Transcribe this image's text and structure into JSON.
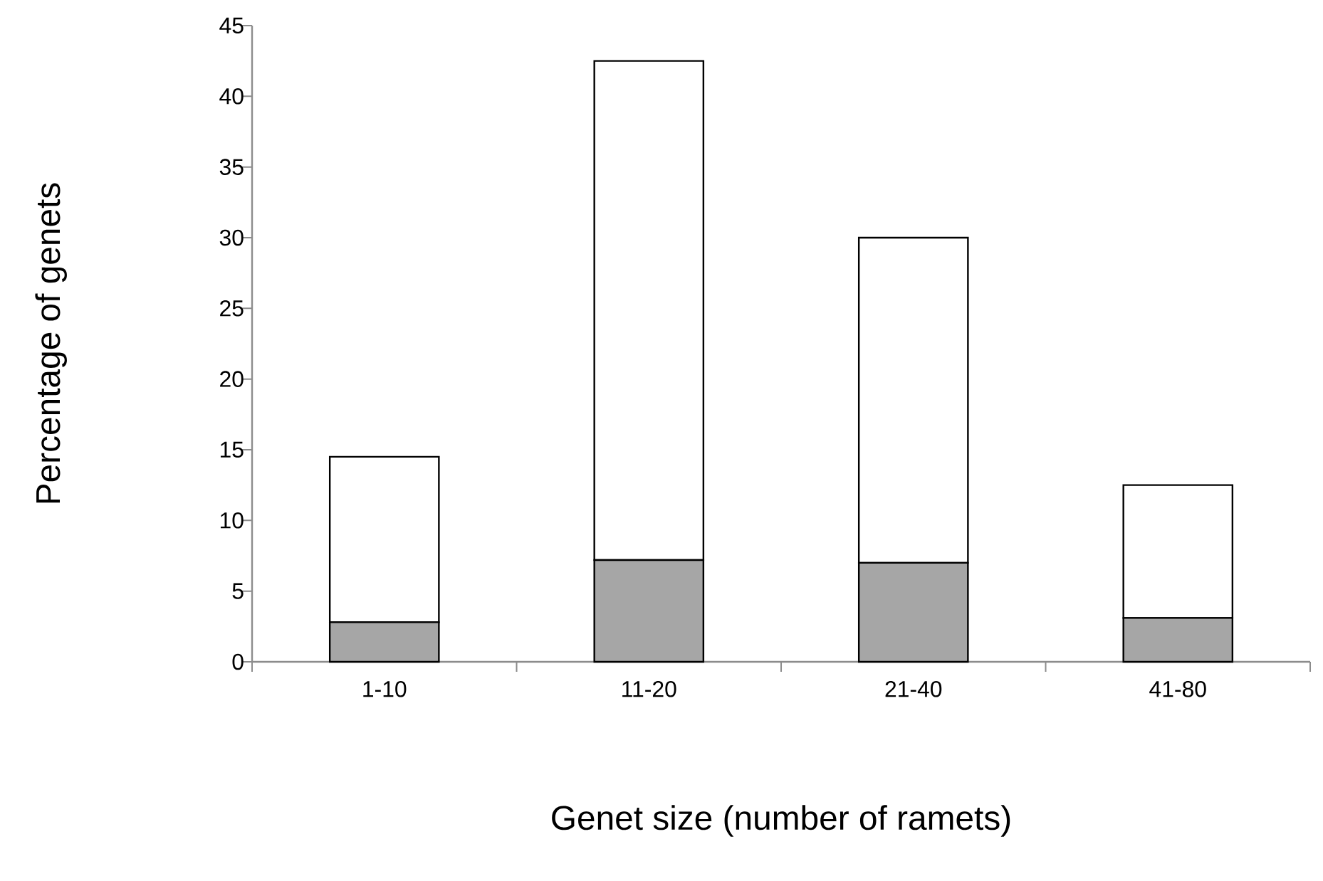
{
  "chart_data": {
    "type": "bar",
    "stacked": true,
    "xlabel": "Genet size (number of ramets)",
    "ylabel": "Percentage of genets",
    "categories": [
      "1-10",
      "11-20",
      "21-40",
      "41-80"
    ],
    "series": [
      {
        "color": "#a6a6a6",
        "values": [
          2.8,
          7.2,
          7.0,
          3.1
        ]
      },
      {
        "color": "#ffffff",
        "values": [
          11.7,
          35.3,
          23.0,
          9.4
        ]
      }
    ],
    "ylim": [
      0,
      45
    ],
    "yticks": [
      0,
      5,
      10,
      15,
      20,
      25,
      30,
      35,
      40,
      45
    ],
    "grid": false
  }
}
